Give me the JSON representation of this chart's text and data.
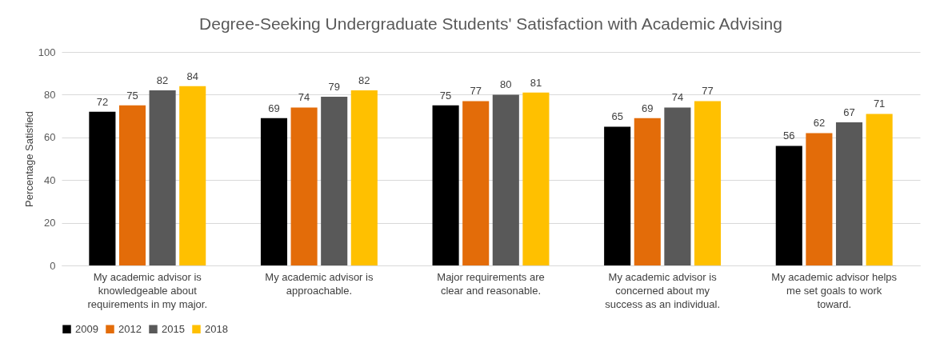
{
  "chart_data": {
    "type": "bar",
    "title": "Degree-Seeking Undergraduate Students' Satisfaction with Academic Advising",
    "ylabel": "Percentage Satisfied",
    "categories": [
      "My academic advisor is knowledgeable about requirements in my major.",
      "My academic advisor is approachable.",
      "Major requirements are clear and reasonable.",
      "My academic advisor is concerned about my success as an individual.",
      "My academic advisor helps me set goals to work toward."
    ],
    "series": [
      {
        "name": "2009",
        "color": "#000000",
        "values": [
          72,
          69,
          75,
          65,
          56
        ]
      },
      {
        "name": "2012",
        "color": "#e36c09",
        "values": [
          75,
          74,
          77,
          69,
          62
        ]
      },
      {
        "name": "2015",
        "color": "#595959",
        "values": [
          82,
          79,
          80,
          74,
          67
        ]
      },
      {
        "name": "2018",
        "color": "#ffc000",
        "values": [
          84,
          82,
          81,
          77,
          71
        ]
      }
    ],
    "ylim": [
      0,
      100
    ],
    "yticks": [
      0,
      20,
      40,
      60,
      80,
      100
    ],
    "grid": "y",
    "legend": "bottom",
    "data_labels": true
  }
}
